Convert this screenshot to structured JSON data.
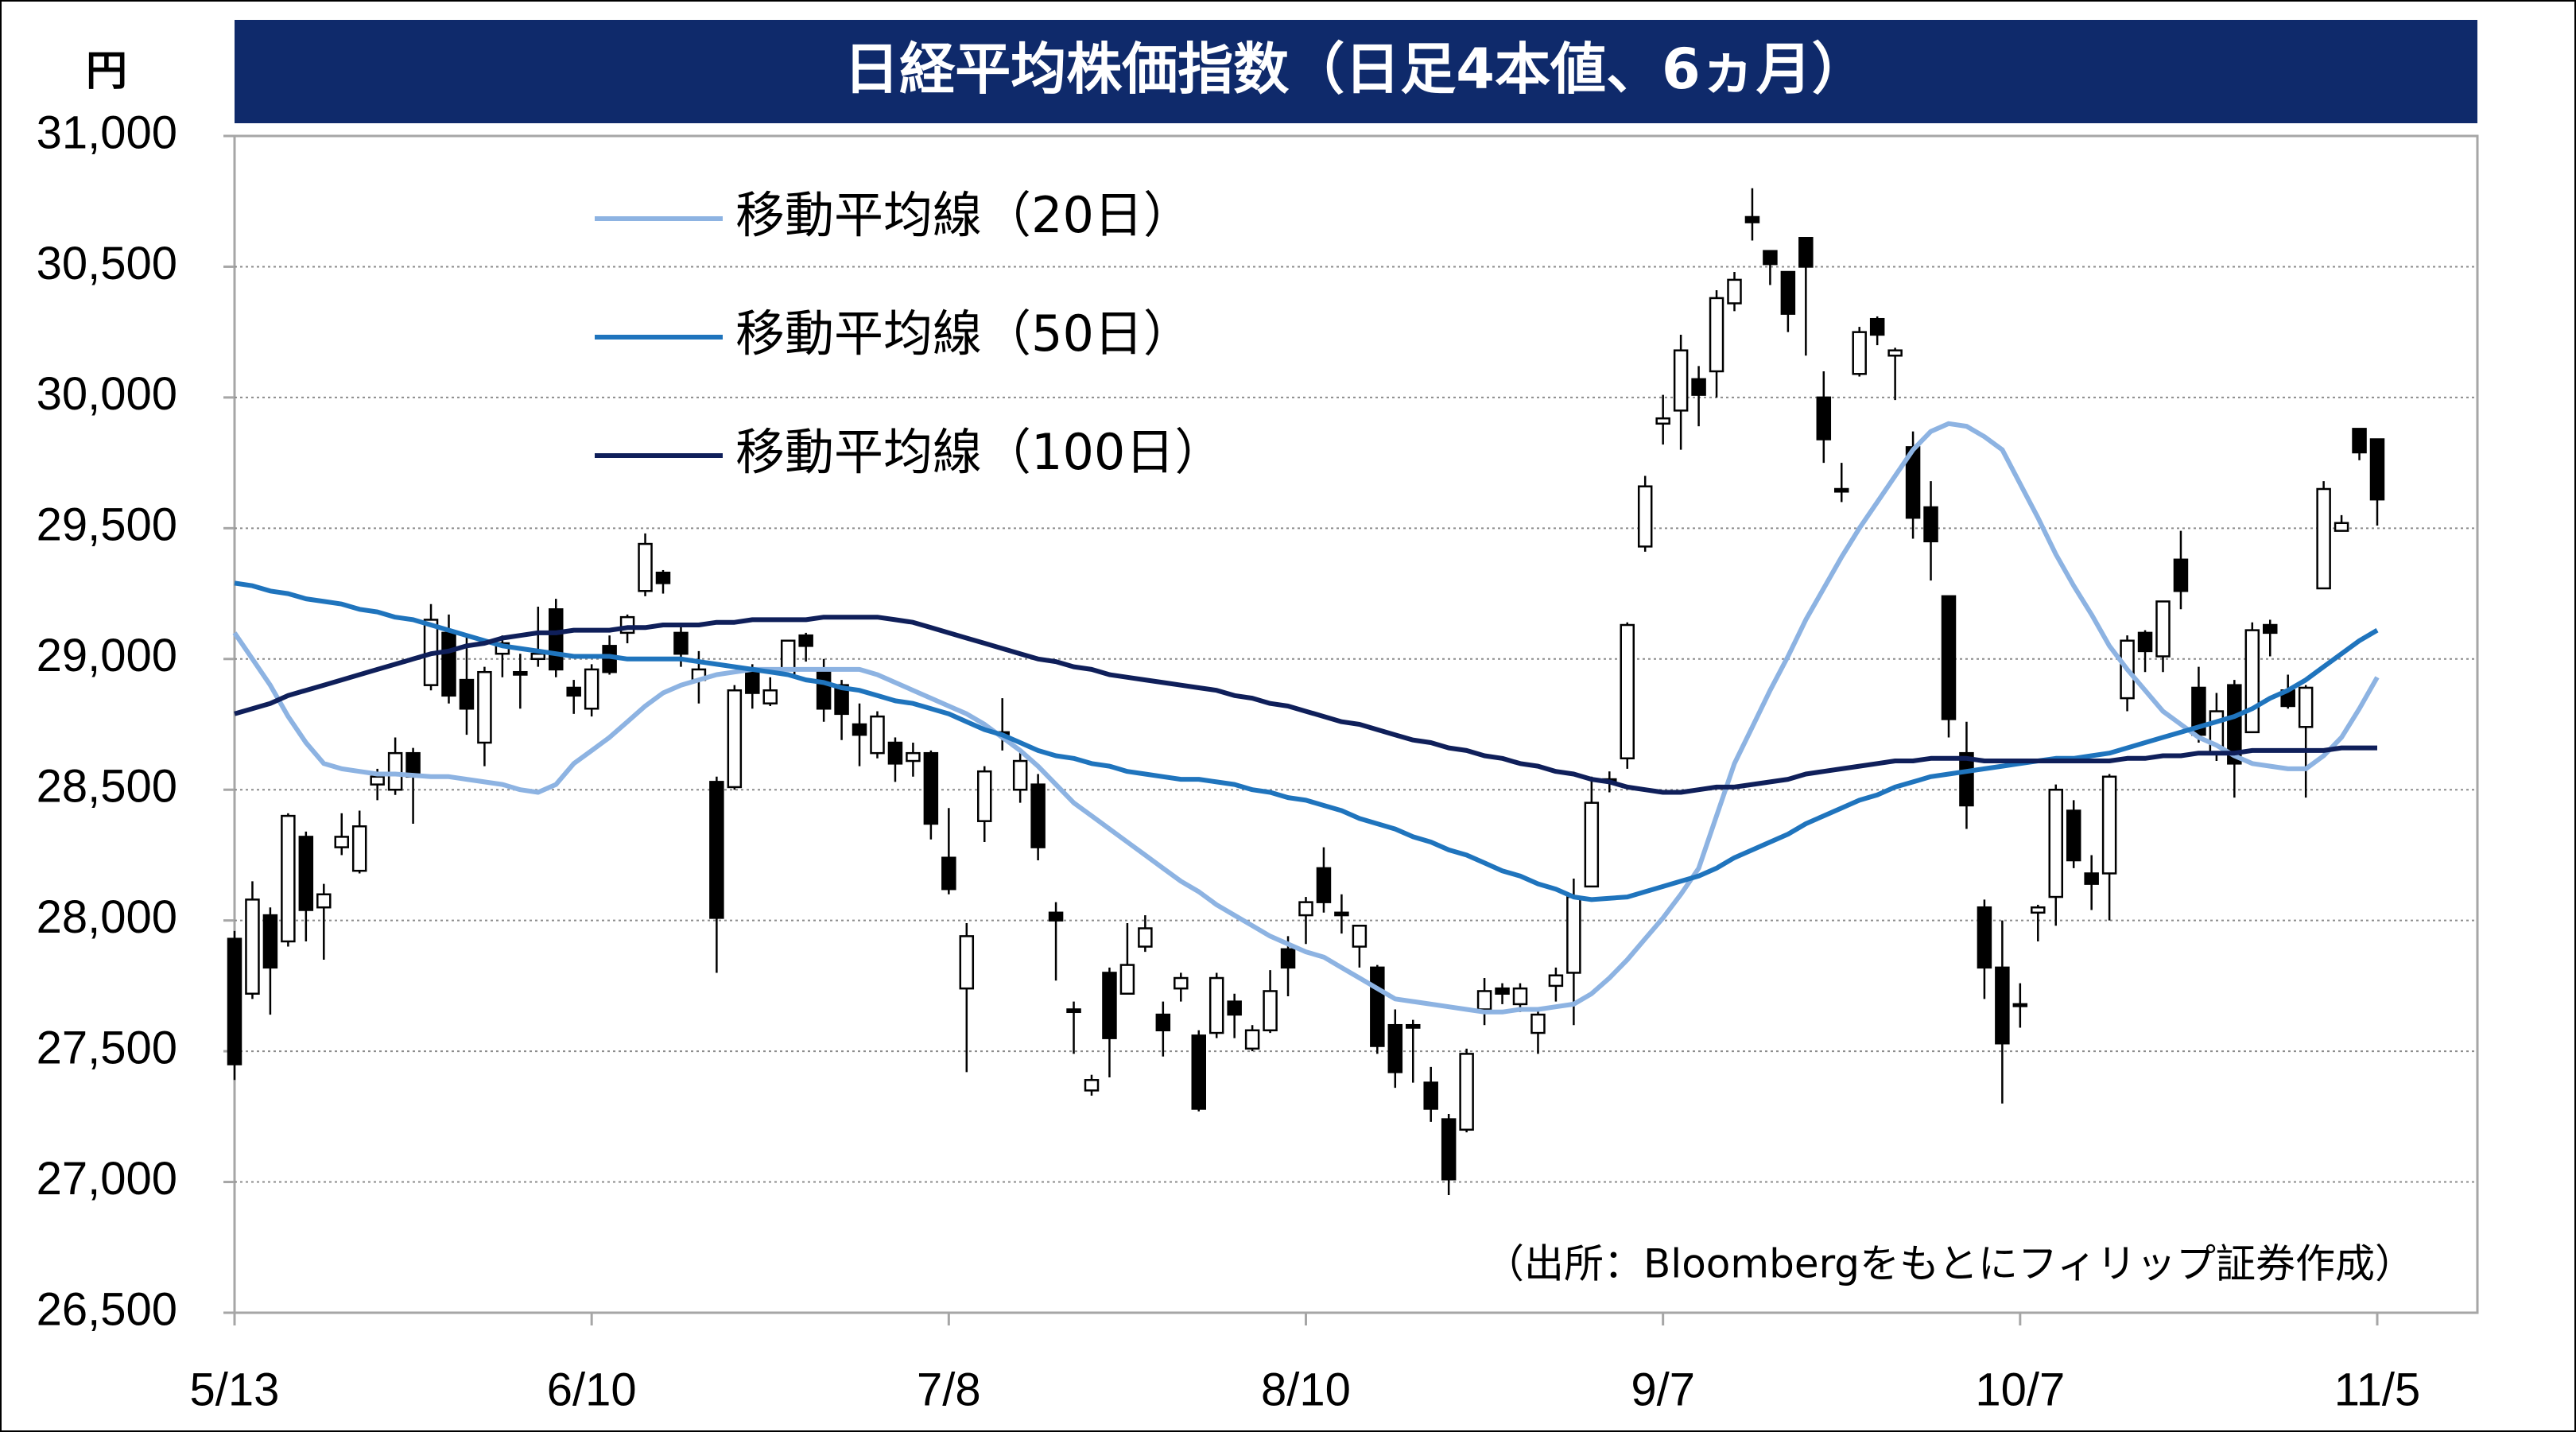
{
  "chart_data": {
    "type": "candlestick",
    "title": "日経平均株価指数（日足4本値、6ヵ月）",
    "y_label": "円",
    "source": "（出所：Bloombergをもとにフィリップ証券作成）",
    "categories": [
      "5/13",
      null,
      null,
      null,
      null,
      null,
      null,
      null,
      null,
      null,
      null,
      null,
      null,
      null,
      null,
      null,
      null,
      null,
      null,
      null,
      "6/10",
      null,
      null,
      null,
      null,
      null,
      null,
      null,
      null,
      null,
      null,
      null,
      null,
      null,
      null,
      null,
      null,
      null,
      null,
      null,
      "7/8",
      null,
      null,
      null,
      null,
      null,
      null,
      null,
      null,
      null,
      null,
      null,
      null,
      null,
      null,
      null,
      null,
      null,
      null,
      null,
      "8/10",
      null,
      null,
      null,
      null,
      null,
      null,
      null,
      null,
      null,
      null,
      null,
      null,
      null,
      null,
      null,
      null,
      null,
      null,
      null,
      "9/7",
      null,
      null,
      null,
      null,
      null,
      null,
      null,
      null,
      null,
      null,
      null,
      null,
      null,
      null,
      null,
      null,
      null,
      null,
      null,
      "10/7",
      null,
      null,
      null,
      null,
      null,
      null,
      null,
      null,
      null,
      null,
      null,
      null,
      null,
      null,
      null,
      null,
      null,
      null,
      null,
      "11/5"
    ],
    "candles": {
      "up_color": "#ffffff",
      "down_color": "#000000",
      "edge_color": "#000000",
      "open": [
        27930,
        27720,
        28020,
        27920,
        28320,
        28050,
        28280,
        28190,
        28520,
        28500,
        28640,
        28900,
        29100,
        28920,
        28680,
        29020,
        28950,
        29000,
        29190,
        28890,
        28810,
        29050,
        29100,
        29260,
        29330,
        29100,
        28920,
        28530,
        28510,
        28950,
        28830,
        28940,
        29090,
        28960,
        28900,
        28750,
        28640,
        28680,
        28610,
        28640,
        28240,
        27740,
        28380,
        28720,
        28500,
        28520,
        28030,
        27660,
        27350,
        27800,
        27720,
        27900,
        27640,
        27740,
        27560,
        27570,
        27690,
        27510,
        27580,
        27890,
        28020,
        28200,
        28030,
        27900,
        27820,
        27600,
        27600,
        27380,
        27240,
        27200,
        27660,
        27740,
        27680,
        27570,
        27750,
        27800,
        28130,
        28540,
        28620,
        29430,
        29900,
        29950,
        30070,
        30100,
        30360,
        30690,
        30560,
        30480,
        30610,
        30000,
        29650,
        30090,
        30300,
        30160,
        29810,
        29580,
        29240,
        28640,
        28050,
        27820,
        27680,
        28030,
        28090,
        28420,
        28180,
        28180,
        28850,
        29100,
        29010,
        29380,
        28890,
        28640,
        28900,
        28720,
        29130,
        28880,
        28740,
        29270,
        29490,
        29880,
        29840
      ],
      "high": [
        27960,
        28150,
        28050,
        28410,
        28340,
        28140,
        28410,
        28420,
        28580,
        28700,
        28660,
        29210,
        29170,
        29090,
        28970,
        29090,
        29020,
        29200,
        29230,
        28920,
        28980,
        29090,
        29170,
        29480,
        29340,
        29130,
        29030,
        28550,
        28900,
        28980,
        28930,
        29070,
        29100,
        29000,
        28920,
        28830,
        28800,
        28700,
        28680,
        28650,
        28430,
        27990,
        28590,
        28850,
        28650,
        28560,
        28070,
        27690,
        27410,
        27820,
        27990,
        28020,
        27690,
        27800,
        27580,
        27800,
        27720,
        27600,
        27810,
        27940,
        28090,
        28280,
        28100,
        27980,
        27830,
        27660,
        27620,
        27440,
        27260,
        27510,
        27780,
        27760,
        27760,
        27660,
        27820,
        28160,
        28550,
        28570,
        29140,
        29700,
        30010,
        30240,
        30120,
        30410,
        30480,
        30800,
        30560,
        30480,
        30610,
        30100,
        29750,
        30270,
        30310,
        30190,
        29870,
        29680,
        29240,
        28760,
        28080,
        28000,
        27760,
        28060,
        28520,
        28460,
        28250,
        28560,
        29090,
        29110,
        29220,
        29490,
        28970,
        28870,
        28920,
        29140,
        29150,
        28940,
        28900,
        29680,
        29550,
        29880,
        29840
      ],
      "low": [
        27390,
        27700,
        27640,
        27900,
        27920,
        27850,
        28250,
        28180,
        28460,
        28480,
        28370,
        28880,
        28830,
        28710,
        28590,
        28930,
        28810,
        28970,
        28930,
        28790,
        28780,
        28940,
        29060,
        29240,
        29250,
        28970,
        28830,
        27800,
        28500,
        28810,
        28820,
        28940,
        28990,
        28760,
        28690,
        28590,
        28620,
        28530,
        28550,
        28310,
        28100,
        27420,
        28300,
        28650,
        28450,
        28230,
        27770,
        27490,
        27330,
        27400,
        27720,
        27880,
        27480,
        27690,
        27270,
        27550,
        27550,
        27500,
        27570,
        27710,
        27910,
        28030,
        27950,
        27820,
        27490,
        27360,
        27380,
        27230,
        26950,
        27190,
        27600,
        27680,
        27650,
        27490,
        27690,
        27600,
        28130,
        28490,
        28580,
        29410,
        29820,
        29800,
        29890,
        30000,
        30330,
        30600,
        30430,
        30250,
        30160,
        29750,
        29600,
        30080,
        30200,
        29990,
        29460,
        29300,
        28700,
        28350,
        27700,
        27300,
        27590,
        27920,
        27980,
        28200,
        28040,
        28000,
        28800,
        28950,
        28950,
        29190,
        28680,
        28610,
        28470,
        28720,
        29010,
        28810,
        28470,
        29270,
        29490,
        29760,
        29510
      ],
      "close": [
        27450,
        28080,
        27820,
        28400,
        28040,
        28100,
        28320,
        28360,
        28550,
        28640,
        28550,
        29150,
        28860,
        28810,
        28950,
        29060,
        28940,
        29020,
        28960,
        28860,
        28960,
        28950,
        29160,
        29440,
        29290,
        29020,
        28960,
        28010,
        28880,
        28870,
        28880,
        29070,
        29050,
        28810,
        28790,
        28710,
        28780,
        28600,
        28640,
        28370,
        28120,
        27940,
        28570,
        28720,
        28610,
        28280,
        28000,
        27650,
        27390,
        27550,
        27830,
        27970,
        27580,
        27780,
        27280,
        27780,
        27640,
        27580,
        27730,
        27820,
        28070,
        28070,
        28020,
        27980,
        27520,
        27420,
        27590,
        27280,
        27010,
        27490,
        27730,
        27720,
        27740,
        27640,
        27790,
        28090,
        28450,
        28540,
        29130,
        29660,
        29920,
        30180,
        30010,
        30380,
        30450,
        30670,
        30510,
        30320,
        30500,
        29840,
        29640,
        30250,
        30240,
        30180,
        29540,
        29450,
        28770,
        28440,
        27820,
        27530,
        27680,
        28050,
        28500,
        28230,
        28140,
        28550,
        29070,
        29030,
        29220,
        29260,
        28710,
        28800,
        28600,
        29110,
        29100,
        28820,
        28890,
        29650,
        29520,
        29790,
        29610
      ]
    },
    "series": [
      {
        "name": "移動平均線（20日）",
        "color": "#8db3e2",
        "values": [
          29100,
          29000,
          28900,
          28780,
          28680,
          28600,
          28580,
          28570,
          28560,
          28560,
          28555,
          28550,
          28550,
          28540,
          28530,
          28520,
          28500,
          28490,
          28520,
          28600,
          28650,
          28700,
          28760,
          28820,
          28870,
          28900,
          28920,
          28940,
          28950,
          28960,
          28960,
          28960,
          28960,
          28960,
          28960,
          28960,
          28940,
          28910,
          28880,
          28850,
          28820,
          28790,
          28750,
          28700,
          28650,
          28590,
          28520,
          28450,
          28400,
          28350,
          28300,
          28250,
          28200,
          28150,
          28110,
          28060,
          28020,
          27980,
          27940,
          27910,
          27880,
          27860,
          27820,
          27780,
          27740,
          27700,
          27690,
          27680,
          27670,
          27660,
          27650,
          27650,
          27660,
          27660,
          27670,
          27680,
          27720,
          27780,
          27850,
          27930,
          28010,
          28100,
          28200,
          28400,
          28600,
          28740,
          28880,
          29010,
          29150,
          29270,
          29390,
          29500,
          29600,
          29700,
          29800,
          29870,
          29900,
          29890,
          29850,
          29800,
          29670,
          29540,
          29400,
          29280,
          29170,
          29050,
          28960,
          28880,
          28800,
          28750,
          28700,
          28670,
          28630,
          28600,
          28590,
          28580,
          28580,
          28630,
          28700,
          28810,
          28930
        ]
      },
      {
        "name": "移動平均線（50日）",
        "color": "#1f74bd",
        "values": [
          29290,
          29280,
          29260,
          29250,
          29230,
          29220,
          29210,
          29190,
          29180,
          29160,
          29150,
          29130,
          29110,
          29090,
          29070,
          29050,
          29040,
          29030,
          29020,
          29010,
          29010,
          29010,
          29000,
          29000,
          29000,
          29000,
          28990,
          28980,
          28970,
          28960,
          28950,
          28940,
          28920,
          28910,
          28890,
          28880,
          28860,
          28840,
          28830,
          28810,
          28790,
          28760,
          28730,
          28710,
          28680,
          28650,
          28630,
          28620,
          28600,
          28590,
          28570,
          28560,
          28550,
          28540,
          28540,
          28530,
          28520,
          28500,
          28490,
          28470,
          28460,
          28440,
          28420,
          28390,
          28370,
          28350,
          28320,
          28300,
          28270,
          28250,
          28220,
          28190,
          28170,
          28140,
          28120,
          28090,
          28080,
          28085,
          28090,
          28110,
          28130,
          28150,
          28170,
          28200,
          28240,
          28270,
          28300,
          28330,
          28370,
          28400,
          28430,
          28460,
          28480,
          28510,
          28530,
          28550,
          28560,
          28570,
          28580,
          28590,
          28600,
          28610,
          28620,
          28620,
          28630,
          28640,
          28660,
          28680,
          28700,
          28720,
          28740,
          28760,
          28780,
          28810,
          28850,
          28880,
          28920,
          28970,
          29020,
          29070,
          29110
        ]
      },
      {
        "name": "移動平均線（100日）",
        "color": "#0f1f5a",
        "values": [
          28790,
          28810,
          28830,
          28860,
          28880,
          28900,
          28920,
          28940,
          28960,
          28980,
          29000,
          29020,
          29030,
          29050,
          29060,
          29080,
          29090,
          29100,
          29100,
          29110,
          29110,
          29110,
          29120,
          29120,
          29130,
          29130,
          29130,
          29140,
          29140,
          29150,
          29150,
          29150,
          29150,
          29160,
          29160,
          29160,
          29160,
          29150,
          29140,
          29120,
          29100,
          29080,
          29060,
          29040,
          29020,
          29000,
          28990,
          28970,
          28960,
          28940,
          28930,
          28920,
          28910,
          28900,
          28890,
          28880,
          28860,
          28850,
          28830,
          28820,
          28800,
          28780,
          28760,
          28750,
          28730,
          28710,
          28690,
          28680,
          28660,
          28650,
          28630,
          28620,
          28600,
          28590,
          28570,
          28560,
          28540,
          28530,
          28510,
          28500,
          28490,
          28490,
          28500,
          28510,
          28510,
          28520,
          28530,
          28540,
          28560,
          28570,
          28580,
          28590,
          28600,
          28610,
          28610,
          28620,
          28620,
          28620,
          28610,
          28610,
          28610,
          28610,
          28610,
          28610,
          28610,
          28610,
          28620,
          28620,
          28630,
          28630,
          28640,
          28640,
          28640,
          28650,
          28650,
          28650,
          28650,
          28650,
          28660,
          28660,
          28660
        ]
      }
    ],
    "ylim": [
      26500,
      31000
    ],
    "yticks": [
      {
        "value": 26500,
        "label": "26,500"
      },
      {
        "value": 27000,
        "label": "27,000"
      },
      {
        "value": 27500,
        "label": "27,500"
      },
      {
        "value": 28000,
        "label": "28,000"
      },
      {
        "value": 28500,
        "label": "28,500"
      },
      {
        "value": 29000,
        "label": "29,000"
      },
      {
        "value": 29500,
        "label": "29,500"
      },
      {
        "value": 30000,
        "label": "30,000"
      },
      {
        "value": 30500,
        "label": "30,500"
      },
      {
        "value": 31000,
        "label": "31,000"
      }
    ],
    "grid": true,
    "legend_position": "upper left",
    "title_background": "#0f2a6b"
  }
}
